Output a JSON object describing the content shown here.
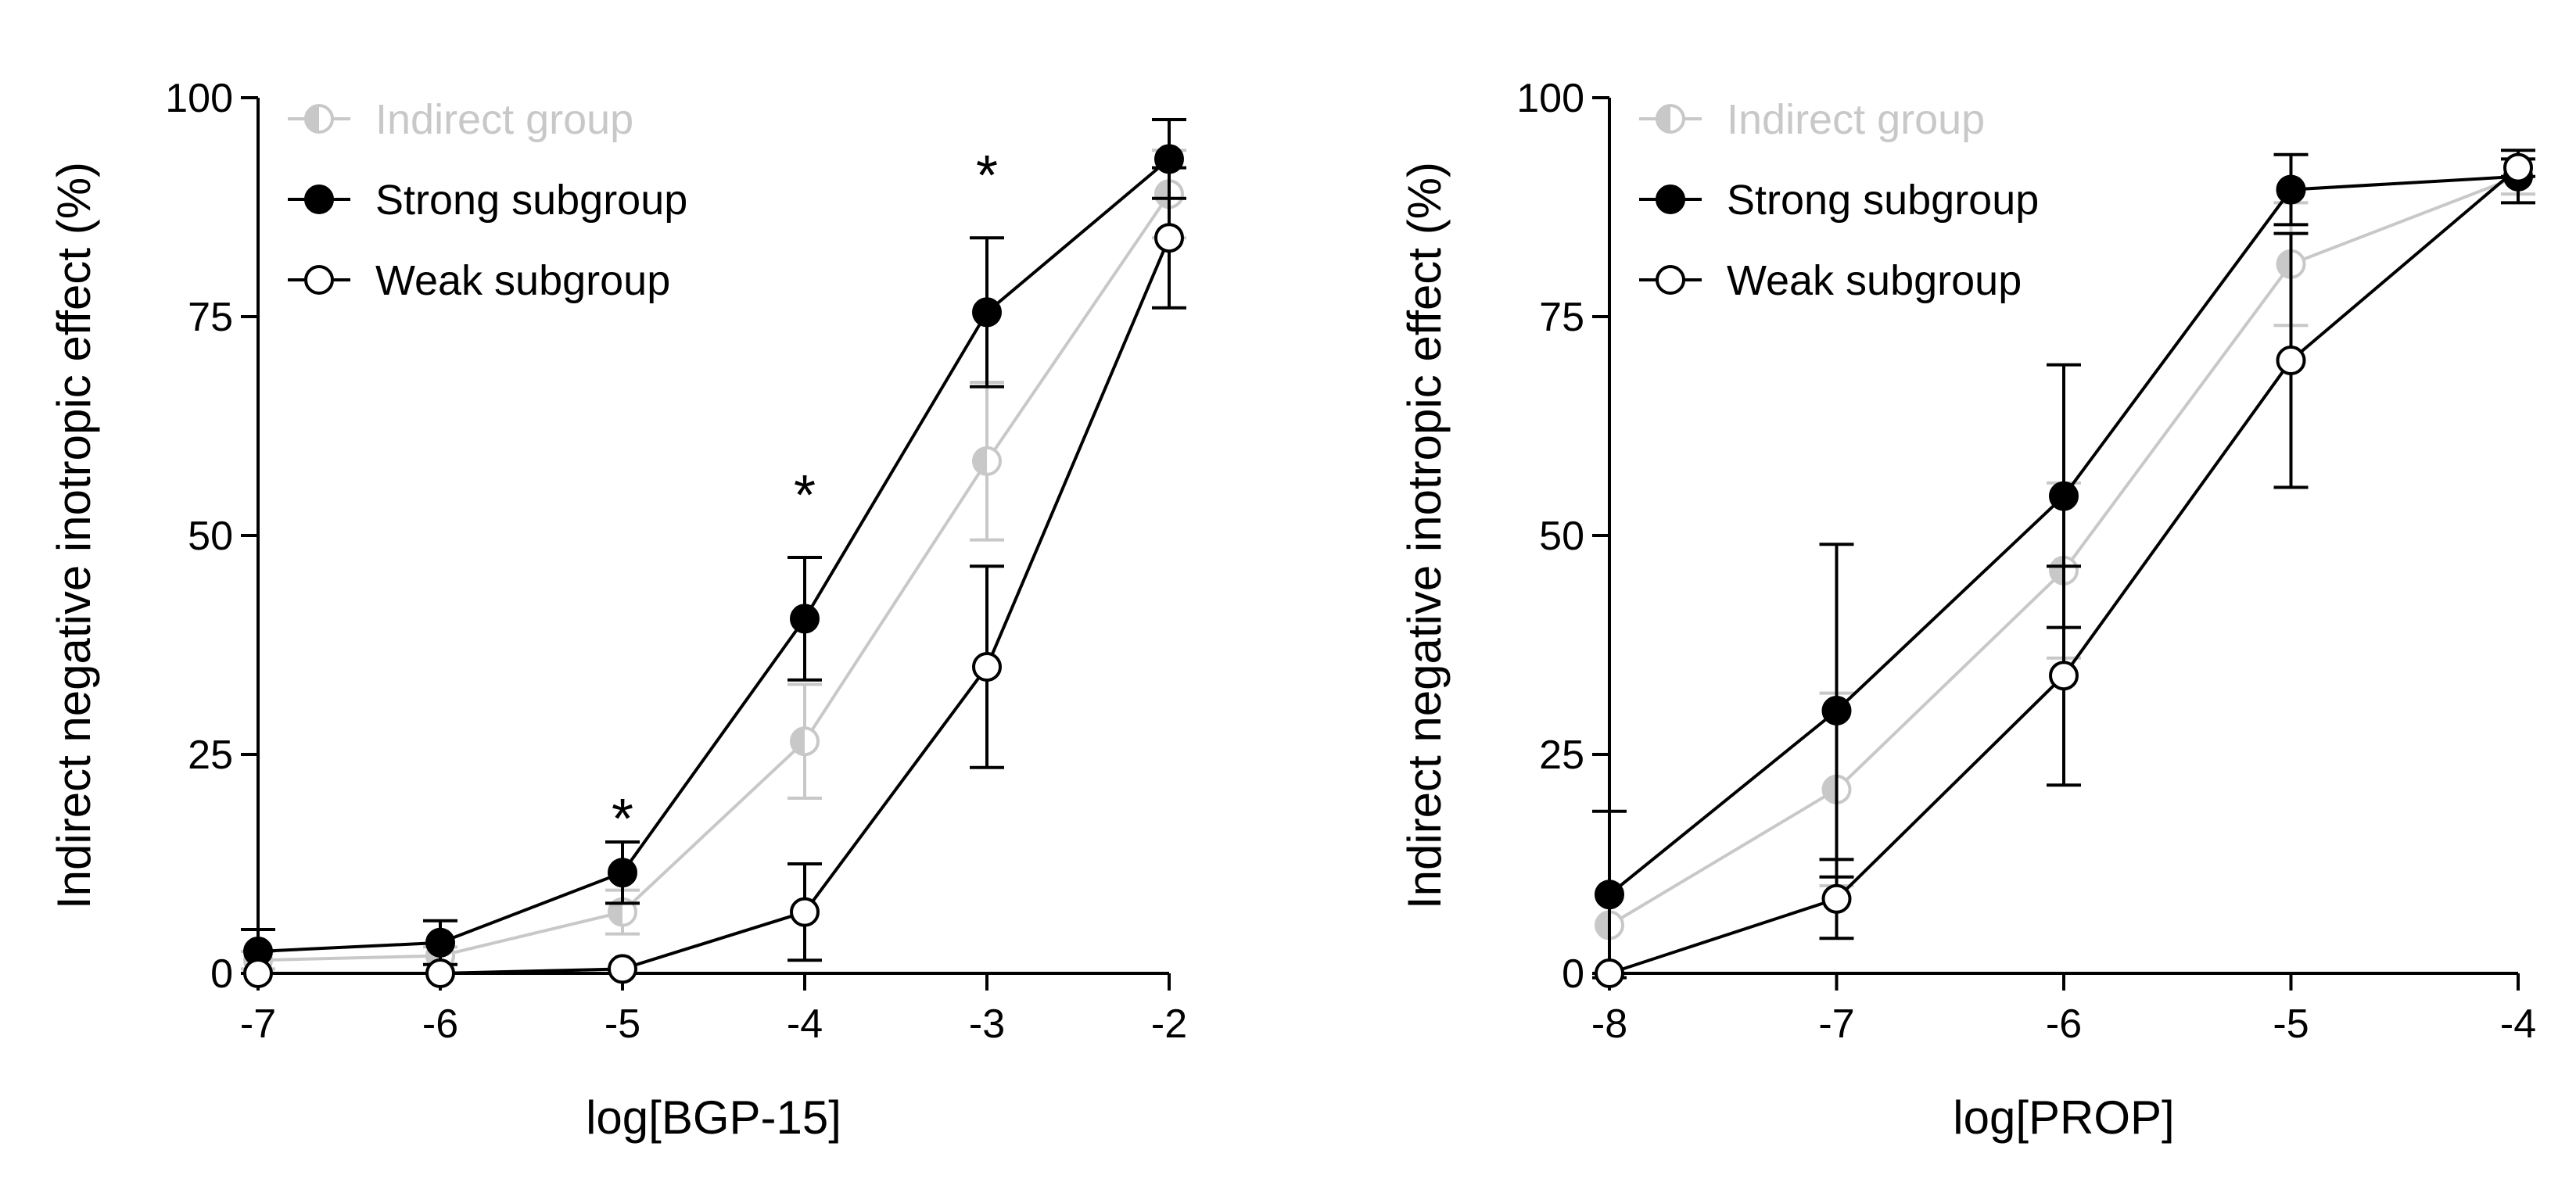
{
  "chart_data": [
    {
      "type": "line",
      "xlabel": "log[BGP-15]",
      "ylabel": "Indirect negative inotropic effect (%)",
      "xlim": [
        -7,
        -2
      ],
      "ylim": [
        0,
        100
      ],
      "xticks": [
        -7,
        -6,
        -5,
        -4,
        -3,
        -2
      ],
      "xtick_labels": [
        "-7",
        "-6",
        "-5",
        "-4",
        "-3",
        "-2"
      ],
      "yticks": [
        0,
        25,
        50,
        75,
        100
      ],
      "ytick_labels": [
        "0",
        "25",
        "50",
        "75",
        "100"
      ],
      "legend_position": "top-left",
      "x": [
        -7,
        -6,
        -5,
        -4,
        -3,
        -2
      ],
      "series": [
        {
          "name": "Indirect group",
          "marker": "half-filled",
          "color": "#c8c8c8",
          "values": [
            1.5,
            2,
            7,
            26.5,
            58.5,
            89
          ],
          "errors": [
            1,
            1,
            2.5,
            6.5,
            9,
            5
          ]
        },
        {
          "name": "Strong subgroup",
          "marker": "filled",
          "color": "#000000",
          "values": [
            2.5,
            3.5,
            11.5,
            40.5,
            75.5,
            93
          ],
          "errors": [
            2.5,
            2.5,
            3.5,
            7,
            8.5,
            4.5
          ]
        },
        {
          "name": "Weak subgroup",
          "marker": "open",
          "color": "#000000",
          "values": [
            0,
            0,
            0.5,
            7,
            35,
            84
          ],
          "errors": [
            0,
            0,
            0,
            5.5,
            11.5,
            8
          ]
        }
      ],
      "annotations": [
        {
          "x": -5,
          "y": 19,
          "text": "*"
        },
        {
          "x": -4,
          "y": 56,
          "text": "*"
        },
        {
          "x": -3,
          "y": 92.5,
          "text": "*"
        }
      ]
    },
    {
      "type": "line",
      "xlabel": "log[PROP]",
      "ylabel": "Indirect negative inotropic effect (%)",
      "xlim": [
        -8,
        -4
      ],
      "ylim": [
        0,
        100
      ],
      "xticks": [
        -8,
        -7,
        -6,
        -5,
        -4
      ],
      "xtick_labels": [
        "-8",
        "-7",
        "-6",
        "-5",
        "-4"
      ],
      "yticks": [
        0,
        25,
        50,
        75,
        100
      ],
      "ytick_labels": [
        "0",
        "25",
        "50",
        "75",
        "100"
      ],
      "legend_position": "top-left",
      "x": [
        -8,
        -7,
        -6,
        -5,
        -4
      ],
      "series": [
        {
          "name": "Indirect group",
          "marker": "half-filled",
          "color": "#c8c8c8",
          "values": [
            5.5,
            21,
            46,
            81,
            91
          ],
          "errors": [
            0,
            11,
            10,
            7,
            2
          ]
        },
        {
          "name": "Strong subgroup",
          "marker": "filled",
          "color": "#000000",
          "values": [
            9,
            30,
            54.5,
            89.5,
            91
          ],
          "errors": [
            9.5,
            19,
            15,
            4,
            3
          ]
        },
        {
          "name": "Weak subgroup",
          "marker": "open",
          "color": "#000000",
          "values": [
            0,
            8.5,
            34,
            70,
            92
          ],
          "errors": [
            0,
            4.5,
            12.5,
            14.5,
            1
          ]
        }
      ],
      "annotations": []
    }
  ]
}
